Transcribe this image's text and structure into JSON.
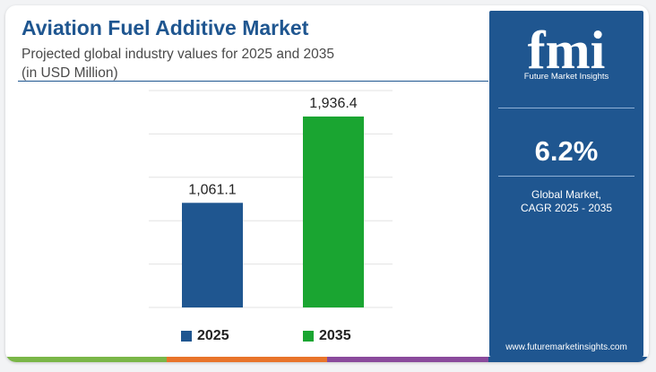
{
  "header": {
    "title": "Aviation Fuel Additive Market",
    "subtitle_line1": "Projected global industry values for 2025 and 2035",
    "subtitle_line2": "(in USD Million)"
  },
  "sidebar": {
    "logo_letters": "fmi",
    "logo_name": "Future Market Insights",
    "cagr_value": "6.2%",
    "cagr_label_line1": "Global Market,",
    "cagr_label_line2": "CAGR 2025 - 2035",
    "website": "www.futuremarketinsights.com"
  },
  "colors": {
    "brand_blue": "#1f5690",
    "bar_2025": "#1f5690",
    "bar_2035": "#1aa531",
    "stripe": [
      "#7ab648",
      "#e8742a",
      "#8a4a9c",
      "#1f5690"
    ]
  },
  "chart_data": {
    "type": "bar",
    "categories": [
      "2025",
      "2035"
    ],
    "values": [
      1061.1,
      1936.4
    ],
    "value_labels": [
      "1,061.1",
      "1,936.4"
    ],
    "title": "Aviation Fuel Additive Market",
    "xlabel": "",
    "ylabel": "",
    "ylim": [
      0,
      2200
    ],
    "grid": true,
    "legend_position": "bottom"
  }
}
